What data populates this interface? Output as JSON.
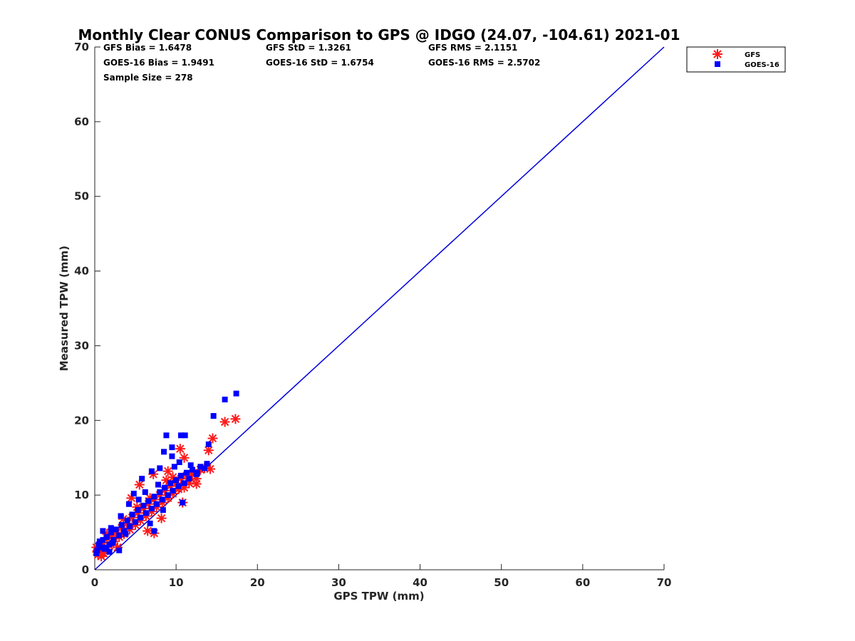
{
  "chart_data": {
    "type": "scatter",
    "title": "Monthly Clear CONUS Comparison to GPS @ IDGO (24.07, -104.61) 2021-01",
    "xlabel": "GPS TPW (mm)",
    "ylabel": "Measured TPW (mm)",
    "xlim": [
      0,
      70
    ],
    "ylim": [
      0,
      70
    ],
    "xticks": [
      0,
      10,
      20,
      30,
      40,
      50,
      60,
      70
    ],
    "yticks": [
      0,
      10,
      20,
      30,
      40,
      50,
      60,
      70
    ],
    "grid": false,
    "legend_position": "outside top-right",
    "stats": [
      [
        "GFS Bias = 1.6478",
        "GFS StD = 1.3261",
        "GFS RMS = 2.1151"
      ],
      [
        "GOES-16 Bias = 1.9491",
        "GOES-16 StD = 1.6754",
        "GOES-16 RMS = 2.5702"
      ],
      [
        "Sample Size = 278",
        "",
        ""
      ]
    ],
    "reference_line": {
      "x": [
        0,
        70
      ],
      "y": [
        0,
        70
      ],
      "color": "#0000dd"
    },
    "series": [
      {
        "name": "GFS",
        "marker": "asterisk",
        "color": "#ff1a1a",
        "points": [
          [
            0.3,
            2.4
          ],
          [
            0.5,
            3.1
          ],
          [
            0.7,
            2.8
          ],
          [
            1.0,
            3.6
          ],
          [
            1.2,
            2.5
          ],
          [
            1.5,
            4.2
          ],
          [
            1.8,
            3.2
          ],
          [
            2.0,
            4.6
          ],
          [
            2.3,
            3.8
          ],
          [
            2.6,
            5.0
          ],
          [
            3.0,
            4.4
          ],
          [
            3.3,
            5.6
          ],
          [
            3.6,
            4.8
          ],
          [
            4.0,
            6.2
          ],
          [
            4.3,
            5.4
          ],
          [
            4.6,
            7.0
          ],
          [
            5.0,
            6.0
          ],
          [
            5.3,
            7.6
          ],
          [
            5.6,
            6.6
          ],
          [
            6.0,
            8.2
          ],
          [
            6.3,
            7.2
          ],
          [
            6.6,
            8.8
          ],
          [
            7.0,
            7.8
          ],
          [
            7.3,
            9.4
          ],
          [
            7.6,
            8.4
          ],
          [
            8.0,
            10.0
          ],
          [
            8.3,
            9.0
          ],
          [
            8.6,
            10.6
          ],
          [
            9.0,
            9.6
          ],
          [
            9.3,
            11.2
          ],
          [
            9.6,
            10.2
          ],
          [
            10.0,
            11.6
          ],
          [
            10.3,
            10.8
          ],
          [
            10.6,
            12.2
          ],
          [
            11.0,
            11.0
          ],
          [
            11.3,
            12.6
          ],
          [
            11.6,
            11.6
          ],
          [
            12.0,
            12.8
          ],
          [
            12.5,
            12.2
          ],
          [
            13.0,
            13.4
          ],
          [
            13.5,
            13.6
          ],
          [
            14.0,
            16.0
          ],
          [
            14.5,
            17.6
          ],
          [
            16.0,
            19.8
          ],
          [
            17.3,
            20.2
          ],
          [
            5.5,
            11.4
          ],
          [
            7.2,
            12.8
          ],
          [
            9.0,
            13.2
          ],
          [
            10.5,
            16.2
          ],
          [
            11.0,
            15.0
          ],
          [
            6.5,
            5.2
          ],
          [
            7.3,
            4.9
          ],
          [
            8.2,
            6.9
          ],
          [
            10.8,
            9.0
          ],
          [
            12.5,
            11.5
          ],
          [
            14.2,
            13.5
          ],
          [
            3.5,
            6.8
          ],
          [
            4.5,
            9.6
          ],
          [
            2.0,
            5.0
          ],
          [
            1.5,
            4.8
          ],
          [
            0.2,
            3.0
          ],
          [
            0.4,
            2.0
          ],
          [
            0.8,
            1.8
          ],
          [
            1.1,
            2.2
          ],
          [
            2.8,
            3.0
          ],
          [
            5.2,
            8.4
          ],
          [
            6.8,
            9.6
          ],
          [
            8.8,
            12.0
          ],
          [
            9.6,
            12.4
          ]
        ]
      },
      {
        "name": "GOES-16",
        "marker": "square",
        "color": "#0000ff",
        "points": [
          [
            0.3,
            2.6
          ],
          [
            0.5,
            3.4
          ],
          [
            0.8,
            3.0
          ],
          [
            1.0,
            4.0
          ],
          [
            1.2,
            2.8
          ],
          [
            1.5,
            4.4
          ],
          [
            1.8,
            3.4
          ],
          [
            2.0,
            5.0
          ],
          [
            2.3,
            4.0
          ],
          [
            2.6,
            5.4
          ],
          [
            3.0,
            4.6
          ],
          [
            3.3,
            6.0
          ],
          [
            3.6,
            5.2
          ],
          [
            4.0,
            6.6
          ],
          [
            4.3,
            5.8
          ],
          [
            4.6,
            7.4
          ],
          [
            5.0,
            6.4
          ],
          [
            5.3,
            8.0
          ],
          [
            5.6,
            7.0
          ],
          [
            6.0,
            8.6
          ],
          [
            6.3,
            7.6
          ],
          [
            6.6,
            9.2
          ],
          [
            7.0,
            8.2
          ],
          [
            7.3,
            9.8
          ],
          [
            7.6,
            8.8
          ],
          [
            8.0,
            10.4
          ],
          [
            8.3,
            9.4
          ],
          [
            8.6,
            11.0
          ],
          [
            9.0,
            10.0
          ],
          [
            9.3,
            11.6
          ],
          [
            9.6,
            10.6
          ],
          [
            10.0,
            12.0
          ],
          [
            10.3,
            11.2
          ],
          [
            10.6,
            12.6
          ],
          [
            11.0,
            11.6
          ],
          [
            11.3,
            13.0
          ],
          [
            11.6,
            12.2
          ],
          [
            12.0,
            13.4
          ],
          [
            12.5,
            12.8
          ],
          [
            13.0,
            13.8
          ],
          [
            13.5,
            13.6
          ],
          [
            14.0,
            16.8
          ],
          [
            14.6,
            20.6
          ],
          [
            16.0,
            22.8
          ],
          [
            17.4,
            23.6
          ],
          [
            8.8,
            18.0
          ],
          [
            10.6,
            18.0
          ],
          [
            11.1,
            18.0
          ],
          [
            8.5,
            15.8
          ],
          [
            9.5,
            16.4
          ],
          [
            9.5,
            15.2
          ],
          [
            8.0,
            13.6
          ],
          [
            7.0,
            13.2
          ],
          [
            5.8,
            12.2
          ],
          [
            4.8,
            10.2
          ],
          [
            10.8,
            9.0
          ],
          [
            7.3,
            5.2
          ],
          [
            3.2,
            7.2
          ],
          [
            2.0,
            5.6
          ],
          [
            1.0,
            5.2
          ],
          [
            0.2,
            2.2
          ],
          [
            0.6,
            3.8
          ],
          [
            1.4,
            3.0
          ],
          [
            2.2,
            3.6
          ],
          [
            3.8,
            4.8
          ],
          [
            4.2,
            8.8
          ],
          [
            5.4,
            9.4
          ],
          [
            6.2,
            10.4
          ],
          [
            7.8,
            11.4
          ],
          [
            9.8,
            13.8
          ],
          [
            10.4,
            14.4
          ],
          [
            11.8,
            14.0
          ],
          [
            12.6,
            13.0
          ],
          [
            13.8,
            14.2
          ],
          [
            6.8,
            6.2
          ],
          [
            8.4,
            8.0
          ],
          [
            3.0,
            2.6
          ],
          [
            1.8,
            2.4
          ]
        ]
      }
    ]
  }
}
